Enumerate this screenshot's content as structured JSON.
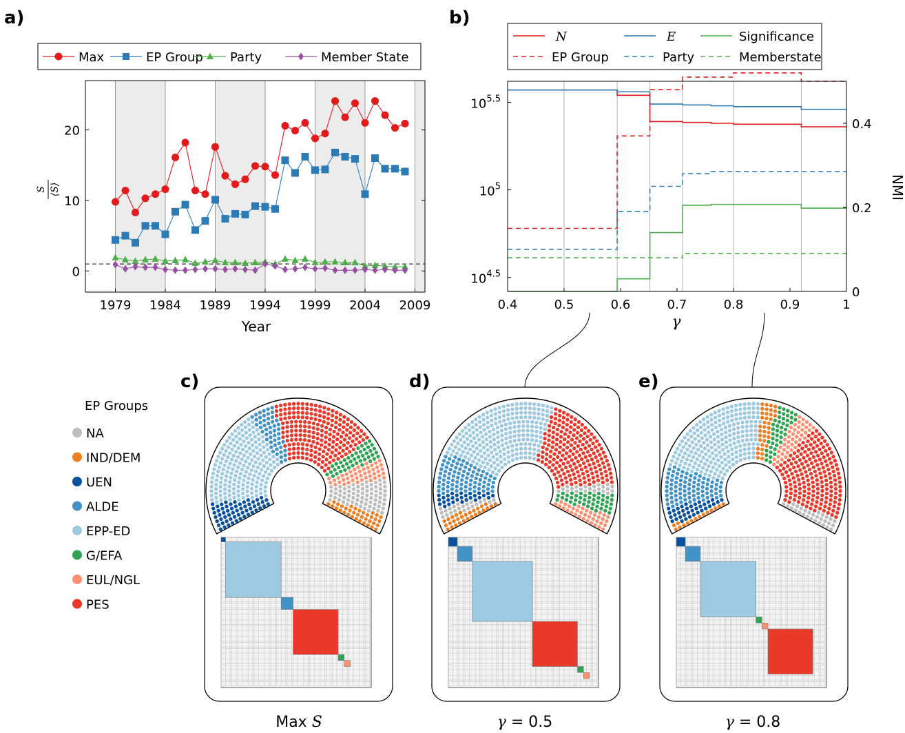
{
  "panels": {
    "a": "a)",
    "b": "b)",
    "c": "c)",
    "d": "d)",
    "e": "e)"
  },
  "colors": {
    "red": "#e31a1c",
    "blue": "#2c7bb6",
    "green": "#4daf4a",
    "purple": "#984ea3",
    "NA": "#bdbdbd",
    "IND/DEM": "#f07f22",
    "UEN": "#08519c",
    "ALDE": "#4292c6",
    "EPP-ED": "#9ecae1",
    "G/EFA": "#31a354",
    "EUL/NGL": "#fc9272",
    "PES": "#e8392b"
  },
  "chart_data": [
    {
      "type": "line",
      "panel": "a",
      "xlabel": "Year",
      "ylabel_num": "S",
      "ylabel_den": "⟨S⟩",
      "xlim": [
        1976,
        2010
      ],
      "ylim": [
        -3,
        27
      ],
      "xticks": [
        1979,
        1984,
        1989,
        1994,
        1999,
        2004,
        2009
      ],
      "yticks": [
        0,
        10,
        20
      ],
      "shaded_bands": [
        [
          1979,
          1984
        ],
        [
          1989,
          1994
        ],
        [
          1999,
          2004
        ],
        [
          2009,
          2010
        ]
      ],
      "reference_line": 1,
      "legend_position": "top",
      "x": [
        1979,
        1980,
        1981,
        1982,
        1983,
        1984,
        1985,
        1986,
        1987,
        1988,
        1989,
        1990,
        1991,
        1992,
        1993,
        1994,
        1995,
        1996,
        1997,
        1998,
        1999,
        2000,
        2001,
        2002,
        2003,
        2004,
        2005,
        2006,
        2007,
        2008
      ],
      "series": [
        {
          "name": "Max",
          "marker": "circle",
          "color": "#e31a1c",
          "values": [
            9.8,
            11.4,
            8.3,
            10.3,
            10.9,
            11.6,
            16.1,
            18.2,
            11.4,
            10.9,
            17.6,
            13.5,
            12.3,
            13.0,
            14.9,
            14.8,
            13.6,
            20.6,
            19.9,
            21.0,
            18.8,
            19.5,
            24.1,
            21.8,
            23.8,
            21.0,
            24.1,
            22.1,
            20.3,
            20.9
          ]
        },
        {
          "name": "EP Group",
          "marker": "square",
          "color": "#2c7bb6",
          "values": [
            4.4,
            5.0,
            4.0,
            6.4,
            6.4,
            5.2,
            8.4,
            9.4,
            5.8,
            7.1,
            10.1,
            7.4,
            8.1,
            8.0,
            9.2,
            9.1,
            8.8,
            15.7,
            13.9,
            16.2,
            14.3,
            14.4,
            16.8,
            16.2,
            15.9,
            10.9,
            16.0,
            14.5,
            14.5,
            14.1
          ]
        },
        {
          "name": "Party",
          "marker": "triangle",
          "color": "#4daf4a",
          "values": [
            1.9,
            1.6,
            1.4,
            1.6,
            1.7,
            1.4,
            1.5,
            1.6,
            1.1,
            1.3,
            1.5,
            1.2,
            1.2,
            1.1,
            1.2,
            1.3,
            1.0,
            1.7,
            1.5,
            1.7,
            1.2,
            1.3,
            1.3,
            1.2,
            1.2,
            0.7,
            0.8,
            0.7,
            0.6,
            0.6
          ]
        },
        {
          "name": "Member State",
          "marker": "diamond",
          "color": "#984ea3",
          "values": [
            0.9,
            0.3,
            0.6,
            0.5,
            0.5,
            0.2,
            0.1,
            0.1,
            0.2,
            0.3,
            0.3,
            0.2,
            0.3,
            0.2,
            0.1,
            1.0,
            0.7,
            0.2,
            0.3,
            0.5,
            0.3,
            0.4,
            0.1,
            0.1,
            0.1,
            0.2,
            0.1,
            0.2,
            0.1,
            0.1
          ]
        }
      ]
    },
    {
      "type": "line",
      "panel": "b",
      "xlabel": "γ",
      "ylabel_right": "NMI",
      "xlim": [
        0.4,
        1.0
      ],
      "xticks": [
        "0.4",
        "0.5",
        "0.6",
        "0.7",
        "0.8",
        "0.9",
        "1"
      ],
      "ylim_left_log10": [
        4.42,
        5.62
      ],
      "yticks_left": [
        {
          "base": "10",
          "exp": "4.5",
          "v": 4.5
        },
        {
          "base": "10",
          "exp": "5",
          "v": 5
        },
        {
          "base": "10",
          "exp": "5.5",
          "v": 5.5
        }
      ],
      "ylim_right": [
        0,
        0.5
      ],
      "yticks_right": [
        "0",
        "0.2",
        "0.4"
      ],
      "vertical_gridlines": [
        0.5,
        0.594,
        0.652,
        0.71,
        0.8,
        0.92
      ],
      "legend_position": "top",
      "series": [
        {
          "name": "N",
          "axis": "left",
          "dash": "solid",
          "color": "#e31a1c",
          "steps": [
            [
              0.4,
              5.57
            ],
            [
              0.594,
              5.54
            ],
            [
              0.652,
              5.39
            ],
            [
              0.71,
              5.385
            ],
            [
              0.76,
              5.38
            ],
            [
              0.8,
              5.375
            ],
            [
              0.92,
              5.36
            ],
            [
              1.0,
              5.36
            ]
          ]
        },
        {
          "name": "E",
          "axis": "left",
          "dash": "solid",
          "color": "#2c7bb6",
          "steps": [
            [
              0.4,
              5.57
            ],
            [
              0.594,
              5.56
            ],
            [
              0.652,
              5.49
            ],
            [
              0.71,
              5.485
            ],
            [
              0.76,
              5.48
            ],
            [
              0.8,
              5.475
            ],
            [
              0.92,
              5.46
            ],
            [
              1.0,
              5.46
            ]
          ]
        },
        {
          "name": "Significance",
          "axis": "right",
          "dash": "solid",
          "color": "#4daf4a",
          "steps": [
            [
              0.4,
              0
            ],
            [
              0.594,
              0.03
            ],
            [
              0.652,
              0.14
            ],
            [
              0.71,
              0.205
            ],
            [
              0.76,
              0.207
            ],
            [
              0.92,
              0.198
            ],
            [
              1.0,
              0.198
            ]
          ]
        },
        {
          "name": "EP Group",
          "axis": "right",
          "dash": "dashed",
          "color": "#e31a1c",
          "steps": [
            [
              0.4,
              0.15
            ],
            [
              0.594,
              0.37
            ],
            [
              0.652,
              0.48
            ],
            [
              0.71,
              0.51
            ],
            [
              0.8,
              0.52
            ],
            [
              0.92,
              0.5
            ],
            [
              1.0,
              0.5
            ]
          ]
        },
        {
          "name": "Party",
          "axis": "right",
          "dash": "dashed",
          "color": "#2c7bb6",
          "steps": [
            [
              0.4,
              0.1
            ],
            [
              0.594,
              0.19
            ],
            [
              0.652,
              0.25
            ],
            [
              0.71,
              0.28
            ],
            [
              0.76,
              0.285
            ],
            [
              1.0,
              0.285
            ]
          ]
        },
        {
          "name": "Memberstate",
          "axis": "right",
          "dash": "dashed",
          "color": "#4daf4a",
          "steps": [
            [
              0.4,
              0.08
            ],
            [
              0.594,
              0.08
            ],
            [
              0.71,
              0.09
            ],
            [
              1.0,
              0.09
            ]
          ]
        }
      ]
    }
  ],
  "legend_groups": {
    "title": "EP Groups",
    "items": [
      "NA",
      "IND/DEM",
      "UEN",
      "ALDE",
      "EPP-ED",
      "G/EFA",
      "EUL/NGL",
      "PES"
    ]
  },
  "captions": {
    "c_prefix": "Max ",
    "c_sym": "S",
    "d_sym": "γ",
    "d_val": " = 0.5",
    "e_sym": "γ",
    "e_val": " = 0.8"
  },
  "hemicycles": {
    "c": [
      {
        "group": "UEN",
        "share": 0.08
      },
      {
        "group": "EPP-ED",
        "share": 0.28
      },
      {
        "group": "ALDE",
        "share": 0.07
      },
      {
        "group": "PES",
        "share": 0.3
      },
      {
        "group": "G/EFA",
        "share": 0.06
      },
      {
        "group": "EUL/NGL",
        "share": 0.06
      },
      {
        "group": "NA",
        "share": 0.1
      },
      {
        "group": "IND/DEM",
        "share": 0.05
      }
    ],
    "d": [
      {
        "group": "IND/DEM",
        "share": 0.04
      },
      {
        "group": "NA",
        "share": 0.03
      },
      {
        "group": "UEN",
        "share": 0.04
      },
      {
        "group": "ALDE",
        "share": 0.12
      },
      {
        "group": "EPP-ED",
        "share": 0.35
      },
      {
        "group": "PES",
        "share": 0.28
      },
      {
        "group": "NA",
        "share": 0.03
      },
      {
        "group": "G/EFA",
        "share": 0.06
      },
      {
        "group": "EUL/NGL",
        "share": 0.05
      }
    ],
    "e": [
      {
        "group": "IND/DEM",
        "share": 0.02
      },
      {
        "group": "UEN",
        "share": 0.05
      },
      {
        "group": "ALDE",
        "share": 0.12
      },
      {
        "group": "EPP-ED",
        "share": 0.33
      },
      {
        "group": "IND/DEM",
        "share": 0.05
      },
      {
        "group": "G/EFA",
        "share": 0.06
      },
      {
        "group": "EUL/NGL",
        "share": 0.06
      },
      {
        "group": "PES",
        "share": 0.27
      },
      {
        "group": "NA",
        "share": 0.04
      }
    ]
  },
  "matrices": {
    "c": [
      {
        "group": "UEN",
        "frac": 0.03
      },
      {
        "group": "EPP-ED",
        "frac": 0.37
      },
      {
        "group": "ALDE",
        "frac": 0.08
      },
      {
        "group": "PES",
        "frac": 0.3
      },
      {
        "group": "G/EFA",
        "frac": 0.04
      },
      {
        "group": "EUL/NGL",
        "frac": 0.04
      }
    ],
    "d": [
      {
        "group": "UEN",
        "frac": 0.06
      },
      {
        "group": "ALDE",
        "frac": 0.1
      },
      {
        "group": "EPP-ED",
        "frac": 0.4
      },
      {
        "group": "PES",
        "frac": 0.3
      },
      {
        "group": "G/EFA",
        "frac": 0.04
      },
      {
        "group": "EUL/NGL",
        "frac": 0.04
      }
    ],
    "e": [
      {
        "group": "UEN",
        "frac": 0.06
      },
      {
        "group": "ALDE",
        "frac": 0.1
      },
      {
        "group": "EPP-ED",
        "frac": 0.37
      },
      {
        "group": "G/EFA",
        "frac": 0.04
      },
      {
        "group": "EUL/NGL",
        "frac": 0.04
      },
      {
        "group": "PES",
        "frac": 0.3
      }
    ]
  }
}
